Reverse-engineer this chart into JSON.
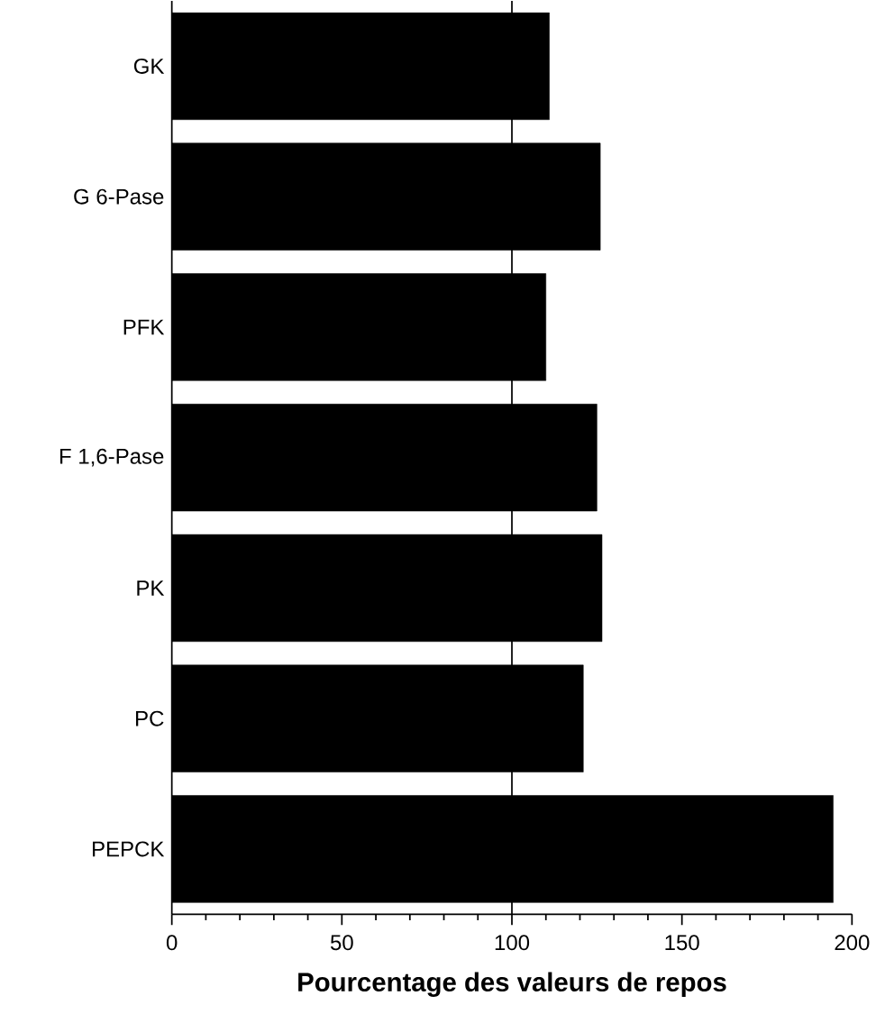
{
  "chart_data": {
    "type": "bar",
    "orientation": "horizontal",
    "xlabel": "Pourcentage des valeurs de repos",
    "categories": [
      "GK",
      "G 6-Pase",
      "PFK",
      "F 1,6-Pase",
      "PK",
      "PC",
      "PEPCK"
    ],
    "values": [
      111,
      126,
      110,
      125,
      126.5,
      121,
      194.5
    ],
    "color": "#000000",
    "xlim": [
      0,
      200
    ],
    "xticks": [
      0,
      50,
      100,
      150,
      200
    ],
    "ref_lines": [
      {
        "axis": "x",
        "value": 100,
        "color": "#000000"
      }
    ]
  }
}
